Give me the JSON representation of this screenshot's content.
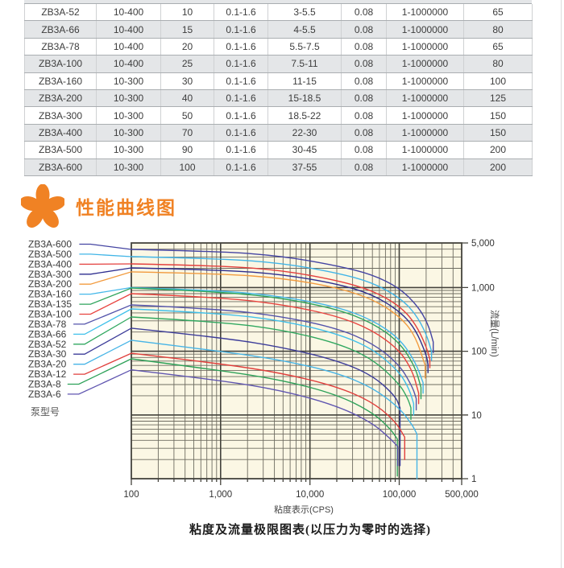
{
  "page": {
    "background": "#ffffff",
    "edge_color": "#dcdcdc"
  },
  "table": {
    "stripe_color": "#e4e6e8",
    "rows": [
      [
        "ZB3A-52",
        "10-400",
        "10",
        "0.1-1.6",
        "3-5.5",
        "0.08",
        "1-1000000",
        "65"
      ],
      [
        "ZB3A-66",
        "10-400",
        "15",
        "0.1-1.6",
        "4-5.5",
        "0.08",
        "1-1000000",
        "80"
      ],
      [
        "ZB3A-78",
        "10-400",
        "20",
        "0.1-1.6",
        "5.5-7.5",
        "0.08",
        "1-1000000",
        "65"
      ],
      [
        "ZB3A-100",
        "10-400",
        "25",
        "0.1-1.6",
        "7.5-11",
        "0.08",
        "1-1000000",
        "80"
      ],
      [
        "ZB3A-160",
        "10-300",
        "30",
        "0.1-1.6",
        "11-15",
        "0.08",
        "1-1000000",
        "100"
      ],
      [
        "ZB3A-200",
        "10-300",
        "40",
        "0.1-1.6",
        "15-18.5",
        "0.08",
        "1-1000000",
        "125"
      ],
      [
        "ZB3A-300",
        "10-300",
        "50",
        "0.1-1.6",
        "18.5-22",
        "0.08",
        "1-1000000",
        "150"
      ],
      [
        "ZB3A-400",
        "10-300",
        "70",
        "0.1-1.6",
        "22-30",
        "0.08",
        "1-1000000",
        "150"
      ],
      [
        "ZB3A-500",
        "10-300",
        "90",
        "0.1-1.6",
        "30-45",
        "0.08",
        "1-1000000",
        "200"
      ],
      [
        "ZB3A-600",
        "10-300",
        "100",
        "0.1-1.6",
        "37-55",
        "0.08",
        "1-1000000",
        "200"
      ]
    ]
  },
  "section": {
    "title": "性能曲线图",
    "accent": "#f08224"
  },
  "chart_data": {
    "type": "line",
    "title": "粘度及流量极限图表(以压力为零时的选择)",
    "xlabel": "粘度表示(CPS)",
    "ylabel": "流量(L/min)",
    "series_axis_label": "泵型号",
    "x_scale": "log",
    "y_scale": "log",
    "xlim": [
      100,
      500000
    ],
    "ylim": [
      1,
      5000
    ],
    "grid": true,
    "legend_position": "left-labels",
    "plot_bg": "#fbf7e4",
    "grid_color": "#55534a",
    "x_ticks": [
      {
        "v": 100,
        "label": "100"
      },
      {
        "v": 1000,
        "label": "1,000"
      },
      {
        "v": 10000,
        "label": "10,000"
      },
      {
        "v": 100000,
        "label": "100,000"
      },
      {
        "v": 500000,
        "label": "500,000"
      }
    ],
    "y_ticks": [
      {
        "v": 5000,
        "label": "5,000"
      },
      {
        "v": 1000,
        "label": "1,000"
      },
      {
        "v": 100,
        "label": "100"
      },
      {
        "v": 10,
        "label": "10"
      },
      {
        "v": 1,
        "label": "1"
      }
    ],
    "series": [
      {
        "name": "ZB3A-600",
        "color": "#4444a2",
        "points": [
          [
            100,
            3960
          ],
          [
            1000,
            3700
          ],
          [
            5000,
            3100
          ],
          [
            20000,
            2200
          ],
          [
            50000,
            1600
          ],
          [
            100000,
            990
          ],
          [
            160000,
            520
          ],
          [
            210000,
            270
          ],
          [
            240000,
            140
          ],
          [
            240000,
            95
          ]
        ]
      },
      {
        "name": "ZB3A-500",
        "color": "#41b5e7",
        "points": [
          [
            100,
            3050
          ],
          [
            1000,
            2850
          ],
          [
            5000,
            2400
          ],
          [
            20000,
            1700
          ],
          [
            50000,
            1200
          ],
          [
            100000,
            700
          ],
          [
            150000,
            400
          ],
          [
            200000,
            190
          ],
          [
            230000,
            100
          ],
          [
            230000,
            72
          ]
        ]
      },
      {
        "name": "ZB3A-400",
        "color": "#e4403e",
        "points": [
          [
            100,
            2350
          ],
          [
            1000,
            2200
          ],
          [
            5000,
            1850
          ],
          [
            20000,
            1300
          ],
          [
            50000,
            900
          ],
          [
            100000,
            520
          ],
          [
            150000,
            280
          ],
          [
            200000,
            120
          ],
          [
            220000,
            75
          ],
          [
            220000,
            55
          ]
        ]
      },
      {
        "name": "ZB3A-300",
        "color": "#2d2d8f",
        "points": [
          [
            100,
            2030
          ],
          [
            1000,
            1900
          ],
          [
            5000,
            1600
          ],
          [
            20000,
            1150
          ],
          [
            50000,
            780
          ],
          [
            100000,
            430
          ],
          [
            150000,
            230
          ],
          [
            200000,
            90
          ],
          [
            210000,
            62
          ],
          [
            210000,
            46
          ]
        ]
      },
      {
        "name": "ZB3A-200",
        "color": "#f29b3f",
        "points": [
          [
            100,
            1760
          ],
          [
            1000,
            1650
          ],
          [
            5000,
            1400
          ],
          [
            20000,
            1000
          ],
          [
            50000,
            660
          ],
          [
            100000,
            360
          ],
          [
            150000,
            180
          ],
          [
            195000,
            60
          ],
          [
            195000,
            38
          ]
        ]
      },
      {
        "name": "ZB3A-160",
        "color": "#45b8ea",
        "points": [
          [
            100,
            1000
          ],
          [
            1000,
            900
          ],
          [
            5000,
            720
          ],
          [
            20000,
            500
          ],
          [
            50000,
            310
          ],
          [
            100000,
            160
          ],
          [
            150000,
            70
          ],
          [
            185000,
            32
          ],
          [
            185000,
            22
          ]
        ]
      },
      {
        "name": "ZB3A-135",
        "color": "#2ea45c",
        "points": [
          [
            100,
            980
          ],
          [
            1000,
            860
          ],
          [
            5000,
            680
          ],
          [
            20000,
            460
          ],
          [
            50000,
            280
          ],
          [
            100000,
            140
          ],
          [
            150000,
            58
          ],
          [
            175000,
            27
          ],
          [
            175000,
            18
          ]
        ]
      },
      {
        "name": "ZB3A-100",
        "color": "#e8433f",
        "points": [
          [
            100,
            800
          ],
          [
            1000,
            700
          ],
          [
            5000,
            540
          ],
          [
            20000,
            360
          ],
          [
            50000,
            215
          ],
          [
            100000,
            105
          ],
          [
            140000,
            50
          ],
          [
            165000,
            22
          ],
          [
            165000,
            15
          ]
        ]
      },
      {
        "name": "ZB3A-78",
        "color": "#5454ab",
        "points": [
          [
            100,
            533
          ],
          [
            1000,
            460
          ],
          [
            5000,
            350
          ],
          [
            20000,
            230
          ],
          [
            50000,
            135
          ],
          [
            100000,
            62
          ],
          [
            140000,
            28
          ],
          [
            155000,
            18
          ],
          [
            155000,
            12
          ]
        ]
      },
      {
        "name": "ZB3A-66",
        "color": "#3fc0ea",
        "points": [
          [
            100,
            461
          ],
          [
            1000,
            395
          ],
          [
            5000,
            300
          ],
          [
            20000,
            190
          ],
          [
            50000,
            110
          ],
          [
            100000,
            48
          ],
          [
            130000,
            25
          ],
          [
            145000,
            15
          ],
          [
            145000,
            10
          ]
        ]
      },
      {
        "name": "ZB3A-52",
        "color": "#31a860",
        "points": [
          [
            100,
            345
          ],
          [
            1000,
            290
          ],
          [
            5000,
            215
          ],
          [
            20000,
            135
          ],
          [
            50000,
            76
          ],
          [
            100000,
            31
          ],
          [
            125000,
            18
          ],
          [
            135000,
            13
          ],
          [
            135000,
            8.5
          ]
        ]
      },
      {
        "name": "ZB3A-30",
        "color": "#3d3d9a",
        "points": [
          [
            100,
            230
          ],
          [
            1000,
            165
          ],
          [
            5000,
            115
          ],
          [
            20000,
            72
          ],
          [
            50000,
            42
          ],
          [
            90000,
            20
          ],
          [
            102000,
            13
          ],
          [
            102000,
            1.6
          ]
        ]
      },
      {
        "name": "ZB3A-20",
        "color": "#46b4e6",
        "points": [
          [
            100,
            149
          ],
          [
            1000,
            100
          ],
          [
            5000,
            72
          ],
          [
            20000,
            46
          ],
          [
            50000,
            27
          ],
          [
            100000,
            13
          ],
          [
            140000,
            7
          ],
          [
            158000,
            5
          ],
          [
            158000,
            1
          ]
        ]
      },
      {
        "name": "ZB3A-12",
        "color": "#e03f3c",
        "points": [
          [
            100,
            93
          ],
          [
            1000,
            64
          ],
          [
            5000,
            45
          ],
          [
            20000,
            28
          ],
          [
            50000,
            16
          ],
          [
            90000,
            8
          ],
          [
            115000,
            4.5
          ],
          [
            115000,
            2
          ]
        ]
      },
      {
        "name": "ZB3A-8",
        "color": "#2da158",
        "points": [
          [
            100,
            76
          ],
          [
            1000,
            50
          ],
          [
            5000,
            35
          ],
          [
            20000,
            21
          ],
          [
            50000,
            11
          ],
          [
            80000,
            6
          ],
          [
            95000,
            4.2
          ],
          [
            95000,
            1.1
          ]
        ]
      },
      {
        "name": "ZB3A-6",
        "color": "#6056b0",
        "points": [
          [
            100,
            51
          ],
          [
            1000,
            35
          ],
          [
            5000,
            24
          ],
          [
            20000,
            14
          ],
          [
            50000,
            7.5
          ],
          [
            80000,
            4.2
          ],
          [
            96000,
            3.2
          ],
          [
            96000,
            1.6
          ]
        ]
      }
    ]
  }
}
